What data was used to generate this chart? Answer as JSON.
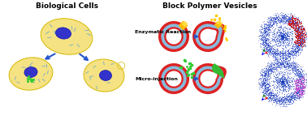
{
  "title_left": "Biological Cells",
  "title_right": "Block Polymer Vesicles",
  "label_enzymatic": "Enzymatic Reaction",
  "label_micro": "Micro-injection",
  "bg_color": "#ffffff",
  "cell_fill": "#f5e282",
  "cell_edge": "#d4b800",
  "nucleus_fill": "#3333cc",
  "nucleus_edge": "#1111aa",
  "vesicle_red": "#dd2222",
  "vesicle_blue": "#88bbdd",
  "vesicle_white": "#ffffff",
  "arrow_color": "#2255cc",
  "enzyme_color": "#ffcc00",
  "inject_color": "#33cc33",
  "sim_blue_dark": "#1133bb",
  "sim_blue_light": "#4466dd",
  "sim_red": "#cc1111",
  "sim_purple": "#cc44cc",
  "organelle_color": "#77aacc"
}
